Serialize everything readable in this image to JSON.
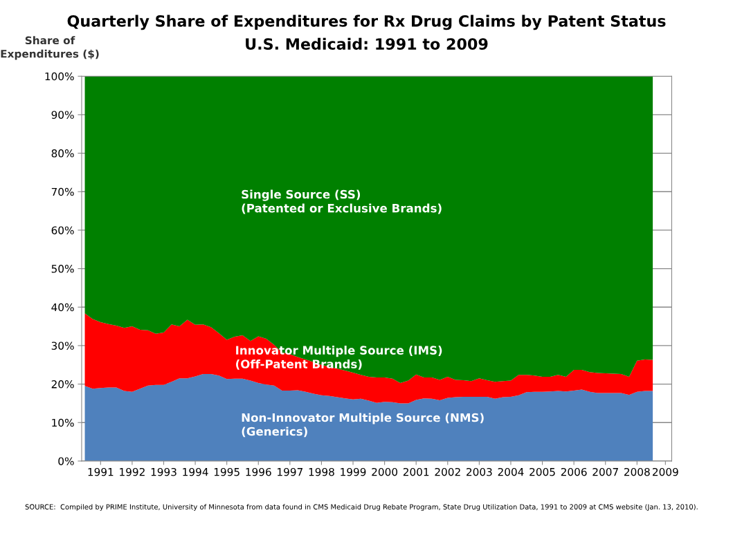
{
  "chart_data": {
    "type": "area",
    "stacked": true,
    "title": "Quarterly Share of Expenditures for Rx Drug Claims by Patent Status",
    "subtitle": "U.S. Medicaid: 1991 to 2009",
    "ylabel": "Share of\nExpenditures ($)",
    "x": [
      1991,
      1991.25,
      1991.5,
      1991.75,
      1992,
      1992.25,
      1992.5,
      1992.75,
      1993,
      1993.25,
      1993.5,
      1993.75,
      1994,
      1994.25,
      1994.5,
      1994.75,
      1995,
      1995.25,
      1995.5,
      1995.75,
      1996,
      1996.25,
      1996.5,
      1996.75,
      1997,
      1997.25,
      1997.5,
      1997.75,
      1998,
      1998.25,
      1998.5,
      1998.75,
      1999,
      1999.25,
      1999.5,
      1999.75,
      2000,
      2000.25,
      2000.5,
      2000.75,
      2001,
      2001.25,
      2001.5,
      2001.75,
      2002,
      2002.25,
      2002.5,
      2002.75,
      2003,
      2003.25,
      2003.5,
      2003.75,
      2004,
      2004.25,
      2004.5,
      2004.75,
      2005,
      2005.25,
      2005.5,
      2005.75,
      2006,
      2006.25,
      2006.5,
      2006.75,
      2007,
      2007.25,
      2007.5,
      2007.75,
      2008,
      2008.25,
      2008.5,
      2008.75,
      2009
    ],
    "series": [
      {
        "name": "Non-Innovator Multiple Source (NMS)\n(Generics)",
        "color": "#4f81bd",
        "values": [
          19.5,
          18.8,
          19.0,
          19.1,
          19.1,
          18.2,
          18.0,
          18.8,
          19.6,
          19.8,
          19.8,
          20.6,
          21.5,
          21.5,
          22.0,
          22.6,
          22.6,
          22.2,
          21.3,
          21.4,
          21.4,
          20.9,
          20.3,
          19.9,
          19.6,
          18.3,
          18.3,
          18.4,
          18.0,
          17.5,
          17.1,
          16.9,
          16.6,
          16.3,
          16.0,
          16.2,
          15.7,
          15.1,
          15.4,
          15.3,
          15.0,
          15.0,
          15.9,
          16.3,
          16.2,
          15.8,
          16.4,
          16.6,
          16.7,
          16.7,
          16.7,
          16.7,
          16.2,
          16.6,
          16.7,
          17.1,
          17.9,
          18.0,
          18.0,
          18.1,
          18.2,
          18.1,
          18.3,
          18.6,
          18.0,
          17.7,
          17.7,
          17.7,
          17.7,
          17.2,
          18.0,
          18.2,
          18.2
        ]
      },
      {
        "name": "Innovator Multiple Source (IMS)\n(Off-Patent Brands)",
        "color": "#ff0000",
        "values": [
          18.9,
          18.1,
          17.1,
          16.5,
          16.1,
          16.4,
          17.0,
          15.3,
          14.4,
          13.3,
          13.6,
          14.9,
          13.5,
          15.2,
          13.4,
          12.9,
          12.2,
          11.0,
          10.2,
          10.9,
          11.3,
          10.3,
          12.1,
          11.9,
          10.6,
          9.9,
          9.5,
          8.6,
          8.4,
          8.2,
          7.9,
          7.6,
          7.4,
          7.2,
          7.0,
          6.2,
          6.2,
          6.6,
          6.3,
          6.1,
          5.3,
          5.9,
          6.6,
          5.4,
          5.5,
          5.3,
          5.5,
          4.5,
          4.3,
          4.1,
          4.8,
          4.3,
          4.4,
          4.2,
          4.2,
          5.3,
          4.5,
          4.2,
          3.9,
          3.8,
          4.2,
          3.8,
          5.4,
          5.1,
          5.1,
          5.2,
          5.1,
          5.0,
          4.9,
          4.7,
          8.1,
          8.2,
          8.1
        ]
      },
      {
        "name": "Single Source (SS)\n(Patented or Exclusive Brands)",
        "color": "#008000",
        "values": [
          61.6,
          63.1,
          63.9,
          64.4,
          64.8,
          65.4,
          65.0,
          65.9,
          66.0,
          66.9,
          66.6,
          64.5,
          65.0,
          63.3,
          64.6,
          64.5,
          65.2,
          66.8,
          68.5,
          67.7,
          67.3,
          68.8,
          67.6,
          68.2,
          69.8,
          71.8,
          72.2,
          73.0,
          73.6,
          74.3,
          75.0,
          75.5,
          76.0,
          76.5,
          77.0,
          77.6,
          78.1,
          78.3,
          78.3,
          78.6,
          79.7,
          79.1,
          77.5,
          78.3,
          78.3,
          78.9,
          78.1,
          78.9,
          79.0,
          79.2,
          78.5,
          79.0,
          79.4,
          79.2,
          79.1,
          77.6,
          77.6,
          77.8,
          78.1,
          78.1,
          77.6,
          78.1,
          76.3,
          76.3,
          76.9,
          77.1,
          77.2,
          77.3,
          77.4,
          78.1,
          73.9,
          73.6,
          73.7
        ]
      }
    ],
    "xlim": [
      1990.9,
      2009.6
    ],
    "xticks": [
      {
        "value": 1991.5,
        "label": "1991"
      },
      {
        "value": 1992.5,
        "label": "1992"
      },
      {
        "value": 1993.5,
        "label": "1993"
      },
      {
        "value": 1994.5,
        "label": "1994"
      },
      {
        "value": 1995.5,
        "label": "1995"
      },
      {
        "value": 1996.5,
        "label": "1996"
      },
      {
        "value": 1997.5,
        "label": "1997"
      },
      {
        "value": 1998.5,
        "label": "1998"
      },
      {
        "value": 1999.5,
        "label": "1999"
      },
      {
        "value": 2000.5,
        "label": "2000"
      },
      {
        "value": 2001.5,
        "label": "2001"
      },
      {
        "value": 2002.5,
        "label": "2002"
      },
      {
        "value": 2003.5,
        "label": "2003"
      },
      {
        "value": 2004.5,
        "label": "2004"
      },
      {
        "value": 2005.5,
        "label": "2005"
      },
      {
        "value": 2006.5,
        "label": "2006"
      },
      {
        "value": 2007.5,
        "label": "2007"
      },
      {
        "value": 2008.5,
        "label": "2008"
      },
      {
        "value": 2009.4,
        "label": "2009"
      }
    ],
    "ylim": [
      0,
      100
    ],
    "yticks": [
      {
        "value": 0,
        "label": "0%"
      },
      {
        "value": 10,
        "label": "10%"
      },
      {
        "value": 20,
        "label": "20%"
      },
      {
        "value": 30,
        "label": "30%"
      },
      {
        "value": 40,
        "label": "40%"
      },
      {
        "value": 50,
        "label": "50%"
      },
      {
        "value": 60,
        "label": "60%"
      },
      {
        "value": 70,
        "label": "70%"
      },
      {
        "value": 80,
        "label": "80%"
      },
      {
        "value": 90,
        "label": "90%"
      },
      {
        "value": 100,
        "label": "100%"
      }
    ],
    "grid": "y",
    "legend": false,
    "annotations": [
      "SOURCE:  Compiled by PRIME Institute, University of Minnesota from data found in CMS Medicaid Drug Rebate Program, State Drug Utilization Data, 1991 to 2009 at CMS website (Jan. 13, 2010)."
    ]
  }
}
